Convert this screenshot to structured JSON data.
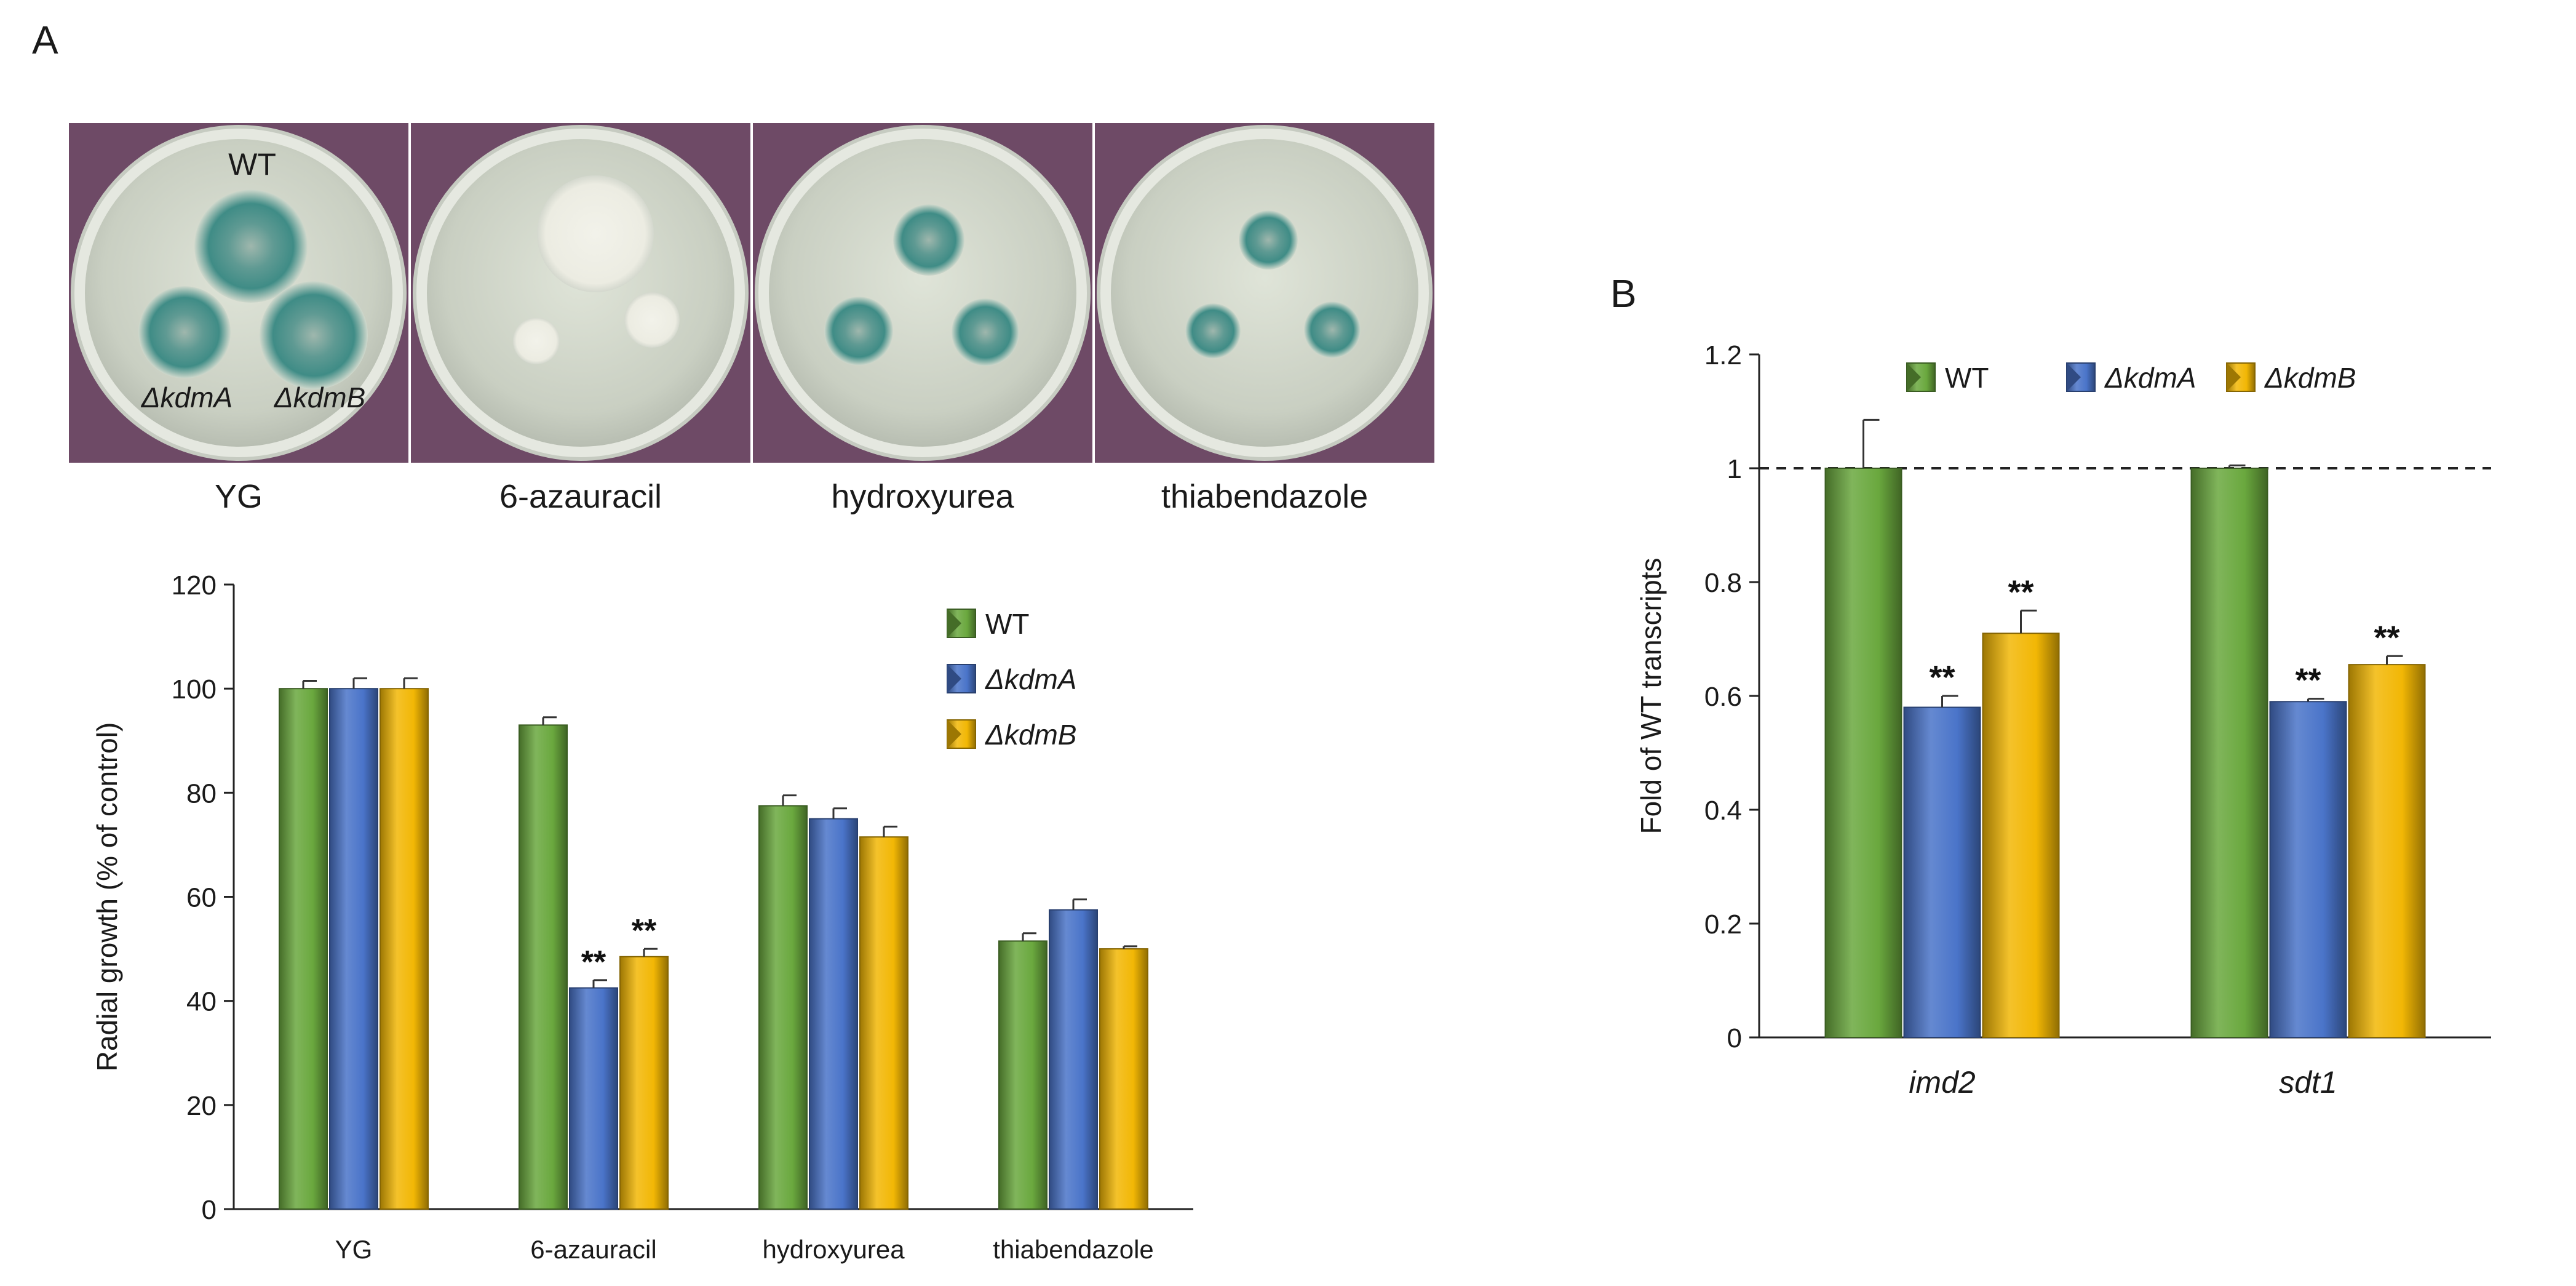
{
  "panels": {
    "a": "A",
    "b": "B"
  },
  "plates": {
    "labels": {
      "wt": "WT",
      "kdmA": "ΔkdmA",
      "kdmB": "ΔkdmB"
    },
    "captions": [
      "YG",
      "6-azauracil",
      "hydroxyurea",
      "thiabendazole"
    ]
  },
  "colors": {
    "wt": "#6aa83e",
    "kdmA": "#4a74c9",
    "kdmB": "#f2b705"
  },
  "chart_data": [
    {
      "type": "bar",
      "panel": "A",
      "title": "",
      "xlabel": "",
      "ylabel": "Radial growth (% of control)",
      "categories": [
        "YG",
        "6-azauracil",
        "hydroxyurea",
        "thiabendazole"
      ],
      "ylim": [
        0,
        120
      ],
      "yticks": [
        0,
        20,
        40,
        60,
        80,
        100,
        120
      ],
      "grid": false,
      "legend_position": "top-right",
      "series": [
        {
          "name": "WT",
          "color": "#6aa83e",
          "values": [
            100,
            93,
            77.5,
            51.5
          ],
          "errors": [
            1.5,
            1.5,
            2,
            1.5
          ],
          "annotations": [
            "",
            "",
            "",
            ""
          ]
        },
        {
          "name": "ΔkdmA",
          "color": "#4a74c9",
          "values": [
            100,
            42.5,
            75,
            57.5
          ],
          "errors": [
            2,
            1.5,
            2,
            2
          ],
          "annotations": [
            "",
            "**",
            "",
            ""
          ]
        },
        {
          "name": "ΔkdmB",
          "color": "#f2b705",
          "values": [
            100,
            48.5,
            71.5,
            50
          ],
          "errors": [
            2,
            1.5,
            2,
            0.5
          ],
          "annotations": [
            "",
            "**",
            "",
            ""
          ]
        }
      ]
    },
    {
      "type": "bar",
      "panel": "B",
      "title": "",
      "xlabel": "",
      "ylabel": "Fold of WT transcripts",
      "categories": [
        "imd2",
        "sdt1"
      ],
      "ylim": [
        0,
        1.2
      ],
      "yticks": [
        "0",
        "0.2",
        "0.4",
        "0.6",
        "0.8",
        "1",
        "1.2"
      ],
      "reference_line": 1,
      "grid": false,
      "legend_position": "top",
      "series": [
        {
          "name": "WT",
          "color": "#6aa83e",
          "values": [
            1.0,
            1.0
          ],
          "errors": [
            0.085,
            0.005
          ],
          "annotations": [
            "",
            ""
          ]
        },
        {
          "name": "ΔkdmA",
          "color": "#4a74c9",
          "values": [
            0.58,
            0.59
          ],
          "errors": [
            0.02,
            0.005
          ],
          "annotations": [
            "**",
            "**"
          ]
        },
        {
          "name": "ΔkdmB",
          "color": "#f2b705",
          "values": [
            0.71,
            0.655
          ],
          "errors": [
            0.04,
            0.015
          ],
          "annotations": [
            "**",
            "**"
          ]
        }
      ]
    }
  ]
}
